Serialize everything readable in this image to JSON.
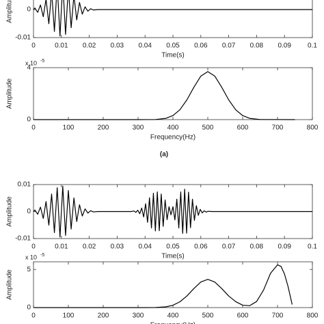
{
  "chart_data": [
    {
      "type": "line",
      "xlabel": "Time(s)",
      "ylabel": "Amplitude",
      "x": [
        0,
        0.0005,
        0.0015,
        0.0025,
        0.0035,
        0.0045,
        0.0055,
        0.0065,
        0.0075,
        0.0085,
        0.0095,
        0.0105,
        0.0115,
        0.0125,
        0.0135,
        0.0145,
        0.0155,
        0.0165,
        0.0175,
        0.0185,
        0.0195,
        0.0205,
        0.0215,
        0.023,
        0.1
      ],
      "series": [
        {
          "color": "#000000",
          "values": [
            0,
            0.00057,
            -0.00099,
            0.00164,
            -0.00254,
            0.0037,
            -0.00504,
            0.00648,
            -0.00782,
            0.00885,
            -0.00943,
            0.00943,
            -0.00885,
            0.00782,
            -0.00648,
            0.00504,
            -0.0037,
            0.00254,
            -0.00164,
            0.00099,
            -0.00057,
            0.0003,
            -0.00015,
            0,
            0
          ]
        }
      ],
      "xlim": [
        0,
        0.1
      ],
      "xticks": [
        0,
        0.01,
        0.02,
        0.03,
        0.04,
        0.05,
        0.06,
        0.07,
        0.08,
        0.09,
        0.1
      ],
      "ylim": [
        -0.01,
        0.01
      ],
      "yticks": [
        -0.01,
        0
      ]
    },
    {
      "type": "line",
      "xlabel": "Frequency(Hz)",
      "ylabel": "Amplitude",
      "y_exponent": {
        "base": "x 10",
        "power": "-5"
      },
      "x": [
        0,
        300,
        350,
        380,
        400,
        420,
        440,
        460,
        480,
        500,
        520,
        540,
        560,
        580,
        600,
        620,
        650,
        750
      ],
      "series": [
        {
          "color": "#000000",
          "values": [
            0,
            0,
            0.01,
            0.1,
            0.31,
            0.76,
            1.52,
            2.49,
            3.35,
            3.7,
            3.35,
            2.49,
            1.52,
            0.76,
            0.31,
            0.1,
            0.01,
            0
          ]
        }
      ],
      "xlim": [
        0,
        800
      ],
      "xticks": [
        0,
        100,
        200,
        300,
        400,
        500,
        600,
        700,
        800
      ],
      "ylim": [
        0,
        4
      ],
      "yticks": [
        0,
        4
      ]
    },
    {
      "type": "line",
      "xlabel": "Time(s)",
      "ylabel": "Amplitude",
      "x": [
        0,
        0.0005,
        0.0015,
        0.0025,
        0.0035,
        0.0045,
        0.0055,
        0.0065,
        0.0075,
        0.0085,
        0.0095,
        0.0105,
        0.0115,
        0.0125,
        0.0135,
        0.0145,
        0.0155,
        0.0165,
        0.0175,
        0.0185,
        0.0195,
        0.0205,
        0.0215,
        0.023,
        0.035,
        0.036,
        0.0367,
        0.0374,
        0.0381,
        0.0388,
        0.0395,
        0.0402,
        0.0409,
        0.0416,
        0.0423,
        0.043,
        0.0437,
        0.0444,
        0.0451,
        0.0458,
        0.0465,
        0.0472,
        0.0479,
        0.0486,
        0.0493,
        0.05,
        0.0507,
        0.0514,
        0.0521,
        0.0528,
        0.0535,
        0.0542,
        0.0549,
        0.0556,
        0.0563,
        0.057,
        0.0577,
        0.0584,
        0.0591,
        0.0598,
        0.0605,
        0.0612,
        0.0619,
        0.0626,
        0.064,
        0.1
      ],
      "series": [
        {
          "color": "#000000",
          "values": [
            0,
            0.00057,
            -0.00099,
            0.00164,
            -0.00254,
            0.0037,
            -0.00504,
            0.00648,
            -0.00782,
            0.00885,
            -0.00943,
            0.00943,
            -0.00885,
            0.00782,
            -0.00648,
            0.00504,
            -0.0037,
            0.00254,
            -0.00164,
            0.00099,
            -0.00057,
            0.0003,
            -0.00015,
            0,
            0,
            0.0002,
            -0.0003,
            0.0005,
            -0.0008,
            0.0013,
            -0.002,
            0.0029,
            -0.004,
            0.0051,
            -0.0061,
            0.0068,
            -0.0072,
            0.0073,
            -0.0071,
            0.0065,
            -0.0055,
            0.0043,
            -0.003,
            0.0018,
            -0.0012,
            0.0018,
            -0.0031,
            0.0046,
            -0.0061,
            0.0073,
            -0.0081,
            0.0083,
            -0.008,
            0.0072,
            -0.006,
            0.0046,
            -0.0033,
            0.0022,
            -0.0014,
            0.0008,
            -0.0005,
            0.0003,
            -0.0002,
            0.0001,
            0,
            0
          ]
        }
      ],
      "xlim": [
        0,
        0.1
      ],
      "xticks": [
        0,
        0.01,
        0.02,
        0.03,
        0.04,
        0.05,
        0.06,
        0.07,
        0.08,
        0.09,
        0.1
      ],
      "ylim": [
        -0.01,
        0.01
      ],
      "yticks": [
        -0.01,
        0,
        0.01
      ]
    },
    {
      "type": "line",
      "xlabel": "Frequency(Hz)",
      "ylabel": "Amplitude",
      "y_exponent": {
        "base": "x 10",
        "power": "-5"
      },
      "x": [
        0,
        300,
        350,
        380,
        400,
        420,
        440,
        460,
        480,
        500,
        520,
        540,
        560,
        580,
        600,
        620,
        640,
        660,
        680,
        700,
        710,
        720,
        730,
        742
      ],
      "series": [
        {
          "color": "#000000",
          "values": [
            0,
            0,
            0.01,
            0.1,
            0.31,
            0.76,
            1.52,
            2.49,
            3.35,
            3.7,
            3.35,
            2.49,
            1.52,
            0.78,
            0.32,
            0.25,
            0.8,
            2.3,
            4.5,
            5.6,
            5.4,
            4.4,
            2.8,
            0.4
          ]
        }
      ],
      "xlim": [
        0,
        800
      ],
      "xticks": [
        0,
        100,
        200,
        300,
        400,
        500,
        600,
        700,
        800
      ],
      "ylim": [
        0,
        6
      ],
      "yticks": [
        0,
        5
      ]
    }
  ],
  "panel_label": "(a)"
}
